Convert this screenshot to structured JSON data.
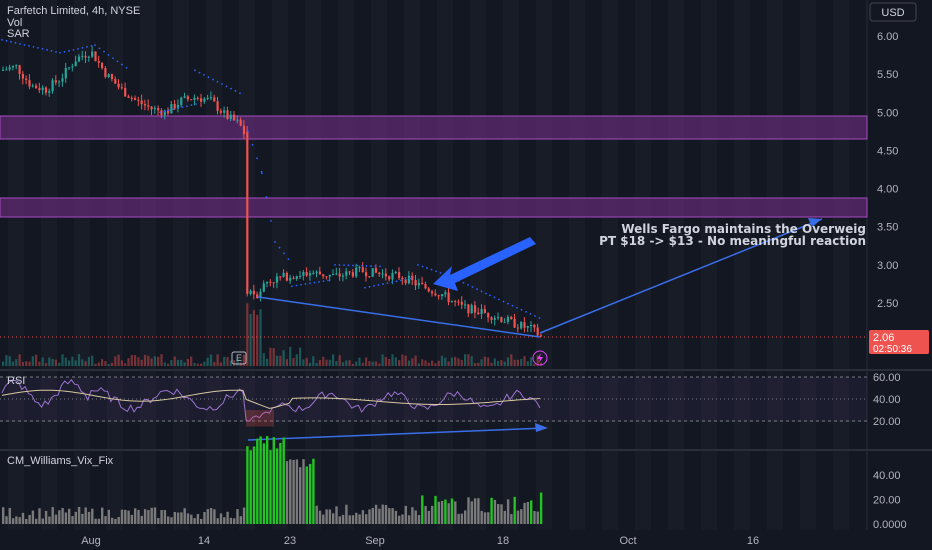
{
  "header": {
    "symbol_line": "Farfetch Limited, 4h, NYSE",
    "indicator_vol": "Vol",
    "indicator_sar": "SAR",
    "currency": "USD"
  },
  "price_axis": {
    "ticks": [
      "6.00",
      "5.50",
      "5.00",
      "4.50",
      "4.00",
      "3.50",
      "3.00",
      "2.50"
    ],
    "tick_values": [
      6.0,
      5.5,
      5.0,
      4.5,
      4.0,
      3.5,
      3.0,
      2.5
    ],
    "last_price": "2.06",
    "countdown": "02:50:36"
  },
  "rsi_pane": {
    "title": "RSI",
    "ticks": [
      "60.00",
      "40.00",
      "20.00"
    ],
    "tick_values": [
      60,
      40,
      20
    ]
  },
  "vix_pane": {
    "title": "CM_Williams_Vix_Fix",
    "ticks": [
      "40.00",
      "20.00",
      "0.0000"
    ],
    "tick_values": [
      40,
      20,
      0
    ]
  },
  "time_axis": {
    "labels": [
      "Aug",
      "14",
      "23",
      "Sep",
      "18",
      "Oct",
      "16"
    ]
  },
  "annotation": {
    "line1": "Wells Fargo maintains the Overweig",
    "line2": "PT $18 -> $13 - No meaningful reaction"
  },
  "badges": {
    "earnings": "E"
  },
  "colors": {
    "background": "#131722",
    "up": "#26a69a",
    "down": "#ef5350",
    "zone": "#7b2f8e",
    "trend": "#2962ff",
    "sar": "#2962ff",
    "vix_high": "#22c322",
    "vix_low": "#7a7a7a",
    "rsi_line": "#9c73d1"
  },
  "chart_data": {
    "type": "candlestick",
    "symbol": "Farfetch Limited",
    "interval": "4h",
    "exchange": "NYSE",
    "approx_price_path": [
      {
        "x": "Aug",
        "price": 5.5
      },
      {
        "x": "Aug 4",
        "price": 5.8
      },
      {
        "x": "Aug 10",
        "price": 5.0
      },
      {
        "x": "Aug 14",
        "price": 5.1
      },
      {
        "x": "Aug 18",
        "price": 4.75
      },
      {
        "x": "Aug 21",
        "price": 2.55
      },
      {
        "x": "Aug 23",
        "price": 2.8
      },
      {
        "x": "Sep",
        "price": 2.85
      },
      {
        "x": "Sep 8",
        "price": 2.7
      },
      {
        "x": "Sep 14",
        "price": 2.4
      },
      {
        "x": "Sep 20",
        "price": 2.06
      }
    ],
    "resistance_zones": [
      [
        4.68,
        4.95
      ],
      [
        3.63,
        3.85
      ]
    ],
    "last_price": 2.06,
    "ylim": [
      1.9,
      6.3
    ]
  }
}
